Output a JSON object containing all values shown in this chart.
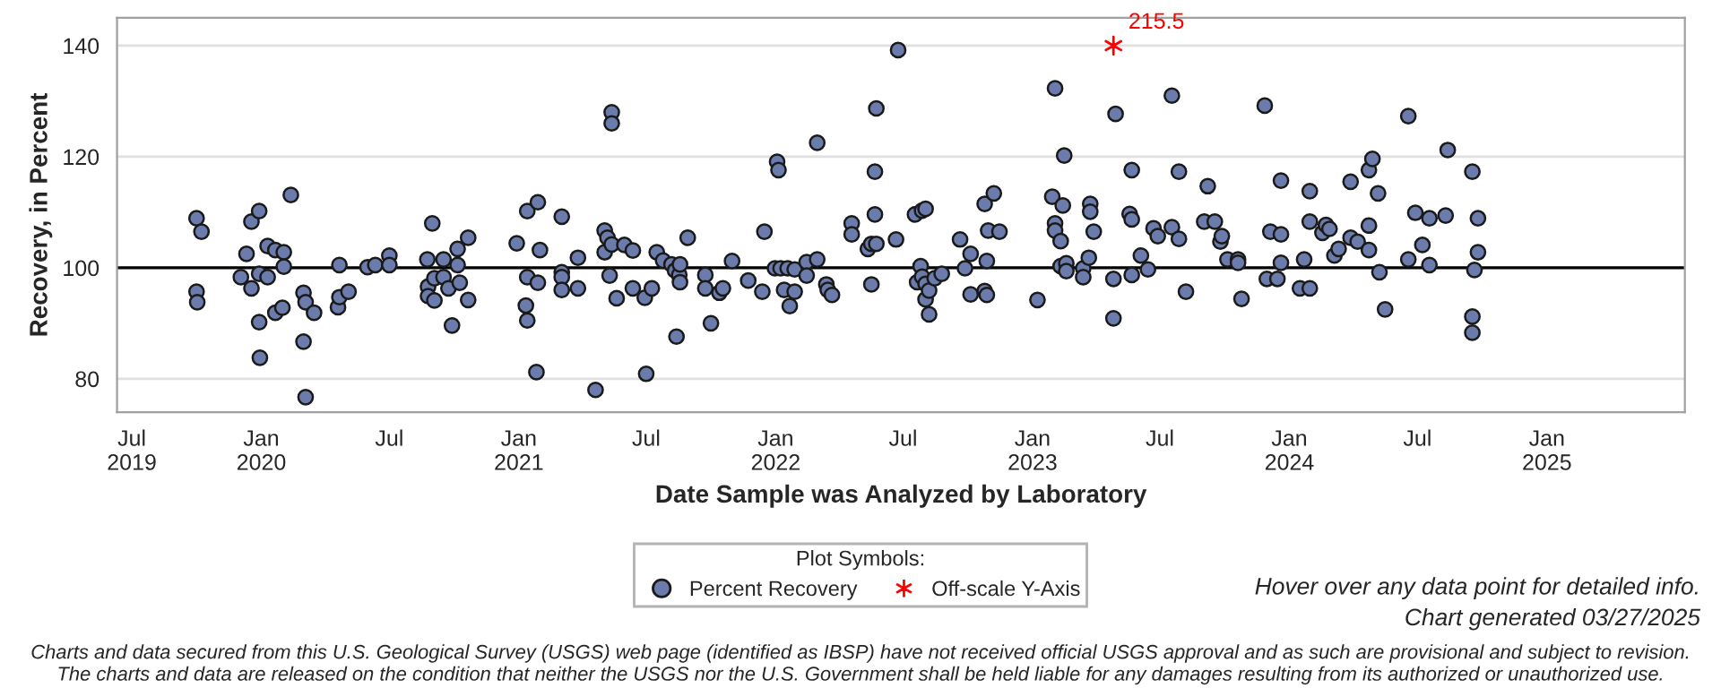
{
  "chart_data": {
    "type": "scatter",
    "xlabel": "Date Sample was Analyzed by Laboratory",
    "ylabel": "Recovery, in Percent",
    "legend_title": "Plot Symbols:",
    "legend": "bottom",
    "grid": "y",
    "xlim": [
      "2019-06-10",
      "2025-07-16"
    ],
    "ylim": [
      74,
      145
    ],
    "yticks": [
      80,
      100,
      120,
      140
    ],
    "xticks": [
      {
        "value": "2019-07-01",
        "label": "Jul\n2019"
      },
      {
        "value": "2020-01-01",
        "label": "Jan\n2020"
      },
      {
        "value": "2020-07-01",
        "label": "Jul"
      },
      {
        "value": "2021-01-01",
        "label": "Jan\n2021"
      },
      {
        "value": "2021-07-01",
        "label": "Jul"
      },
      {
        "value": "2022-01-01",
        "label": "Jan\n2022"
      },
      {
        "value": "2022-07-01",
        "label": "Jul"
      },
      {
        "value": "2023-01-01",
        "label": "Jan\n2023"
      },
      {
        "value": "2023-07-01",
        "label": "Jul"
      },
      {
        "value": "2024-01-01",
        "label": "Jan\n2024"
      },
      {
        "value": "2024-07-01",
        "label": "Jul"
      },
      {
        "value": "2025-01-01",
        "label": "Jan\n2025"
      }
    ],
    "ref_lines": [
      {
        "axis": "y",
        "value": 100,
        "color": "#000000"
      }
    ],
    "series": [
      {
        "name": "Percent Recovery",
        "marker": "circle",
        "color": "#6b7bab",
        "x": [
          "2019-10-01",
          "2019-10-08",
          "2019-10-01",
          "2019-10-02",
          "2019-12-03",
          "2019-12-11",
          "2019-12-18",
          "2019-12-29",
          "2019-12-18",
          "2019-12-29",
          "2019-12-29",
          "2019-12-30",
          "2020-01-10",
          "2020-01-10",
          "2020-01-21",
          "2020-02-02",
          "2020-02-02",
          "2020-01-21",
          "2020-01-31",
          "2020-02-12",
          "2020-03-01",
          "2020-03-04",
          "2020-03-01",
          "2020-03-04",
          "2020-03-16",
          "2020-04-19",
          "2020-04-21",
          "2020-05-04",
          "2020-04-21",
          "2020-05-31",
          "2020-06-11",
          "2020-07-01",
          "2020-07-01",
          "2020-08-24",
          "2020-08-31",
          "2020-08-25",
          "2020-08-25",
          "2020-09-03",
          "2020-09-03",
          "2020-09-16",
          "2020-09-16",
          "2020-09-23",
          "2020-09-28",
          "2020-10-06",
          "2020-10-06",
          "2020-10-09",
          "2020-10-21",
          "2020-10-21",
          "2020-12-29",
          "2021-01-13",
          "2021-01-28",
          "2021-01-13",
          "2021-01-11",
          "2021-01-13",
          "2021-01-26",
          "2021-01-31",
          "2021-01-28",
          "2021-03-03",
          "2021-03-03",
          "2021-03-03",
          "2021-03-03",
          "2021-03-26",
          "2021-03-26",
          "2021-04-20",
          "2021-05-03",
          "2021-05-03",
          "2021-05-13",
          "2021-05-13",
          "2021-05-07",
          "2021-05-13",
          "2021-05-10",
          "2021-05-20",
          "2021-05-31",
          "2021-06-12",
          "2021-06-12",
          "2021-06-29",
          "2021-07-09",
          "2021-07-01",
          "2021-07-16",
          "2021-07-25",
          "2021-08-06",
          "2021-08-11",
          "2021-08-17",
          "2021-08-18",
          "2021-08-18",
          "2021-08-13",
          "2021-08-29",
          "2021-09-23",
          "2021-09-23",
          "2021-10-01",
          "2021-10-13",
          "2021-10-18",
          "2021-10-31",
          "2021-11-23",
          "2021-12-13",
          "2021-12-16",
          "2022-01-03",
          "2022-01-05",
          "2021-12-31",
          "2022-01-08",
          "2022-01-18",
          "2022-01-28",
          "2022-01-13",
          "2022-01-21",
          "2022-01-28",
          "2022-02-14",
          "2022-02-14",
          "2022-03-01",
          "2022-03-01",
          "2022-03-14",
          "2022-03-16",
          "2022-03-22",
          "2022-04-19",
          "2022-04-19",
          "2022-05-12",
          "2022-05-17",
          "2022-05-24",
          "2022-05-22",
          "2022-05-22",
          "2022-05-24",
          "2022-05-17",
          "2022-06-21",
          "2022-06-24",
          "2022-07-18",
          "2022-07-28",
          "2022-08-02",
          "2022-07-26",
          "2022-07-21",
          "2022-07-28",
          "2022-08-02",
          "2022-08-02",
          "2022-08-07",
          "2022-08-07",
          "2022-08-15",
          "2022-08-25",
          "2022-09-20",
          "2022-09-27",
          "2022-10-05",
          "2022-10-05",
          "2022-10-25",
          "2022-11-07",
          "2022-10-30",
          "2022-11-15",
          "2022-10-28",
          "2022-10-25",
          "2022-10-28",
          "2023-01-08",
          "2023-02-02",
          "2023-02-15",
          "2023-01-29",
          "2023-02-13",
          "2023-02-02",
          "2023-02-02",
          "2023-02-10",
          "2023-02-10",
          "2023-02-18",
          "2023-02-18",
          "2023-03-14",
          "2023-03-14",
          "2023-03-22",
          "2023-03-24",
          "2023-03-24",
          "2023-03-29",
          "2023-04-26",
          "2023-04-26",
          "2023-04-29",
          "2023-05-22",
          "2023-05-19",
          "2023-05-22",
          "2023-05-22",
          "2023-06-04",
          "2023-06-14",
          "2023-06-22",
          "2023-06-28",
          "2023-07-18",
          "2023-07-18",
          "2023-07-28",
          "2023-07-28",
          "2023-08-07",
          "2023-09-02",
          "2023-09-07",
          "2023-09-17",
          "2023-09-25",
          "2023-09-27",
          "2023-10-05",
          "2023-10-20",
          "2023-10-20",
          "2023-10-25",
          "2023-11-27",
          "2023-12-05",
          "2023-11-30",
          "2023-12-15",
          "2023-12-20",
          "2023-12-20",
          "2023-12-20",
          "2024-01-16",
          "2024-01-30",
          "2024-01-22",
          "2024-01-30",
          "2024-01-30",
          "2024-02-17",
          "2024-02-22",
          "2024-02-27",
          "2024-03-05",
          "2024-03-11",
          "2024-03-28",
          "2024-03-28",
          "2024-04-07",
          "2024-04-23",
          "2024-04-23",
          "2024-04-23",
          "2024-04-28",
          "2024-05-06",
          "2024-05-08",
          "2024-05-16",
          "2024-06-18",
          "2024-06-18",
          "2024-06-28",
          "2024-07-08",
          "2024-07-18",
          "2024-07-18",
          "2024-08-10",
          "2024-08-13",
          "2024-09-17",
          "2024-09-25",
          "2024-09-25",
          "2024-09-20",
          "2024-09-17",
          "2024-09-17"
        ],
        "values": [
          108.9,
          106.5,
          95.7,
          93.8,
          98.3,
          102.5,
          108.3,
          110.2,
          96.3,
          98.9,
          90.2,
          83.8,
          98.3,
          103.9,
          103.2,
          102.8,
          100.2,
          91.9,
          92.8,
          113.1,
          95.5,
          93.8,
          86.7,
          76.7,
          91.9,
          92.9,
          94.7,
          95.7,
          100.5,
          100.1,
          100.5,
          102.2,
          100.5,
          101.5,
          108.0,
          96.6,
          94.9,
          94.1,
          98.1,
          98.3,
          101.5,
          96.3,
          89.6,
          100.5,
          103.4,
          97.3,
          105.4,
          94.2,
          104.4,
          110.2,
          111.8,
          98.3,
          93.2,
          90.5,
          81.2,
          103.2,
          97.3,
          109.2,
          99.2,
          98.3,
          96.0,
          101.8,
          96.3,
          78.0,
          106.7,
          102.8,
          128.0,
          126.0,
          105.4,
          104.2,
          98.6,
          94.5,
          104.1,
          103.1,
          96.3,
          94.6,
          96.3,
          80.9,
          102.8,
          101.3,
          100.6,
          99.5,
          98.7,
          100.6,
          97.4,
          87.6,
          105.4,
          98.7,
          96.3,
          90.0,
          95.5,
          96.3,
          101.2,
          97.7,
          95.7,
          106.5,
          119.1,
          117.6,
          99.9,
          99.9,
          99.9,
          99.7,
          96.0,
          93.1,
          95.7,
          101.0,
          98.6,
          101.5,
          122.5,
          97.0,
          96.0,
          95.1,
          108.0,
          106.0,
          103.4,
          104.3,
          104.3,
          117.3,
          109.6,
          128.7,
          97.0,
          105.1,
          139.2,
          109.6,
          110.3,
          110.6,
          100.3,
          97.4,
          98.4,
          97.1,
          94.3,
          95.9,
          91.6,
          98.1,
          98.9,
          105.1,
          99.9,
          102.5,
          95.2,
          111.5,
          113.4,
          106.7,
          106.5,
          101.2,
          95.8,
          95.1,
          94.2,
          132.3,
          120.2,
          112.8,
          111.2,
          108.0,
          106.7,
          104.8,
          100.3,
          100.8,
          99.4,
          99.9,
          98.3,
          101.8,
          111.5,
          110.1,
          106.5,
          98.0,
          90.9,
          127.7,
          117.6,
          109.7,
          108.7,
          98.7,
          102.2,
          99.7,
          107.1,
          105.7,
          131.0,
          107.3,
          117.3,
          105.2,
          95.7,
          108.3,
          114.7,
          108.3,
          104.7,
          105.7,
          101.5,
          101.5,
          100.9,
          94.4,
          129.2,
          106.5,
          98.0,
          98.0,
          106.0,
          100.9,
          115.7,
          96.3,
          96.3,
          101.5,
          113.8,
          108.3,
          106.3,
          107.7,
          107.0,
          102.2,
          103.4,
          115.5,
          105.4,
          104.7,
          107.6,
          103.2,
          117.6,
          119.6,
          113.4,
          99.2,
          92.5,
          101.5,
          127.3,
          109.9,
          104.1,
          108.9,
          100.5,
          109.4,
          121.2,
          117.3,
          108.9,
          102.8,
          99.6,
          91.2,
          88.3
        ]
      },
      {
        "name": "Off-scale Y-Axis",
        "marker": "cross",
        "color": "#ff0000",
        "x": [
          "2023-04-26"
        ],
        "values": [
          140
        ]
      }
    ],
    "annotations": [
      {
        "text": "215.5",
        "x": "2023-04-26",
        "y": 140
      },
      "Hover over any data point for detailed info.",
      "Chart generated 03/27/2025",
      "Charts and data secured from this U.S. Geological Survey (USGS) web page (identified as IBSP) have not received official USGS approval and as such are provisional and subject to revision.\nThe charts and data are released on the condition that neither the USGS nor the U.S. Government shall be held liable for any damages resulting from its authorized or unauthorized use."
    ]
  }
}
